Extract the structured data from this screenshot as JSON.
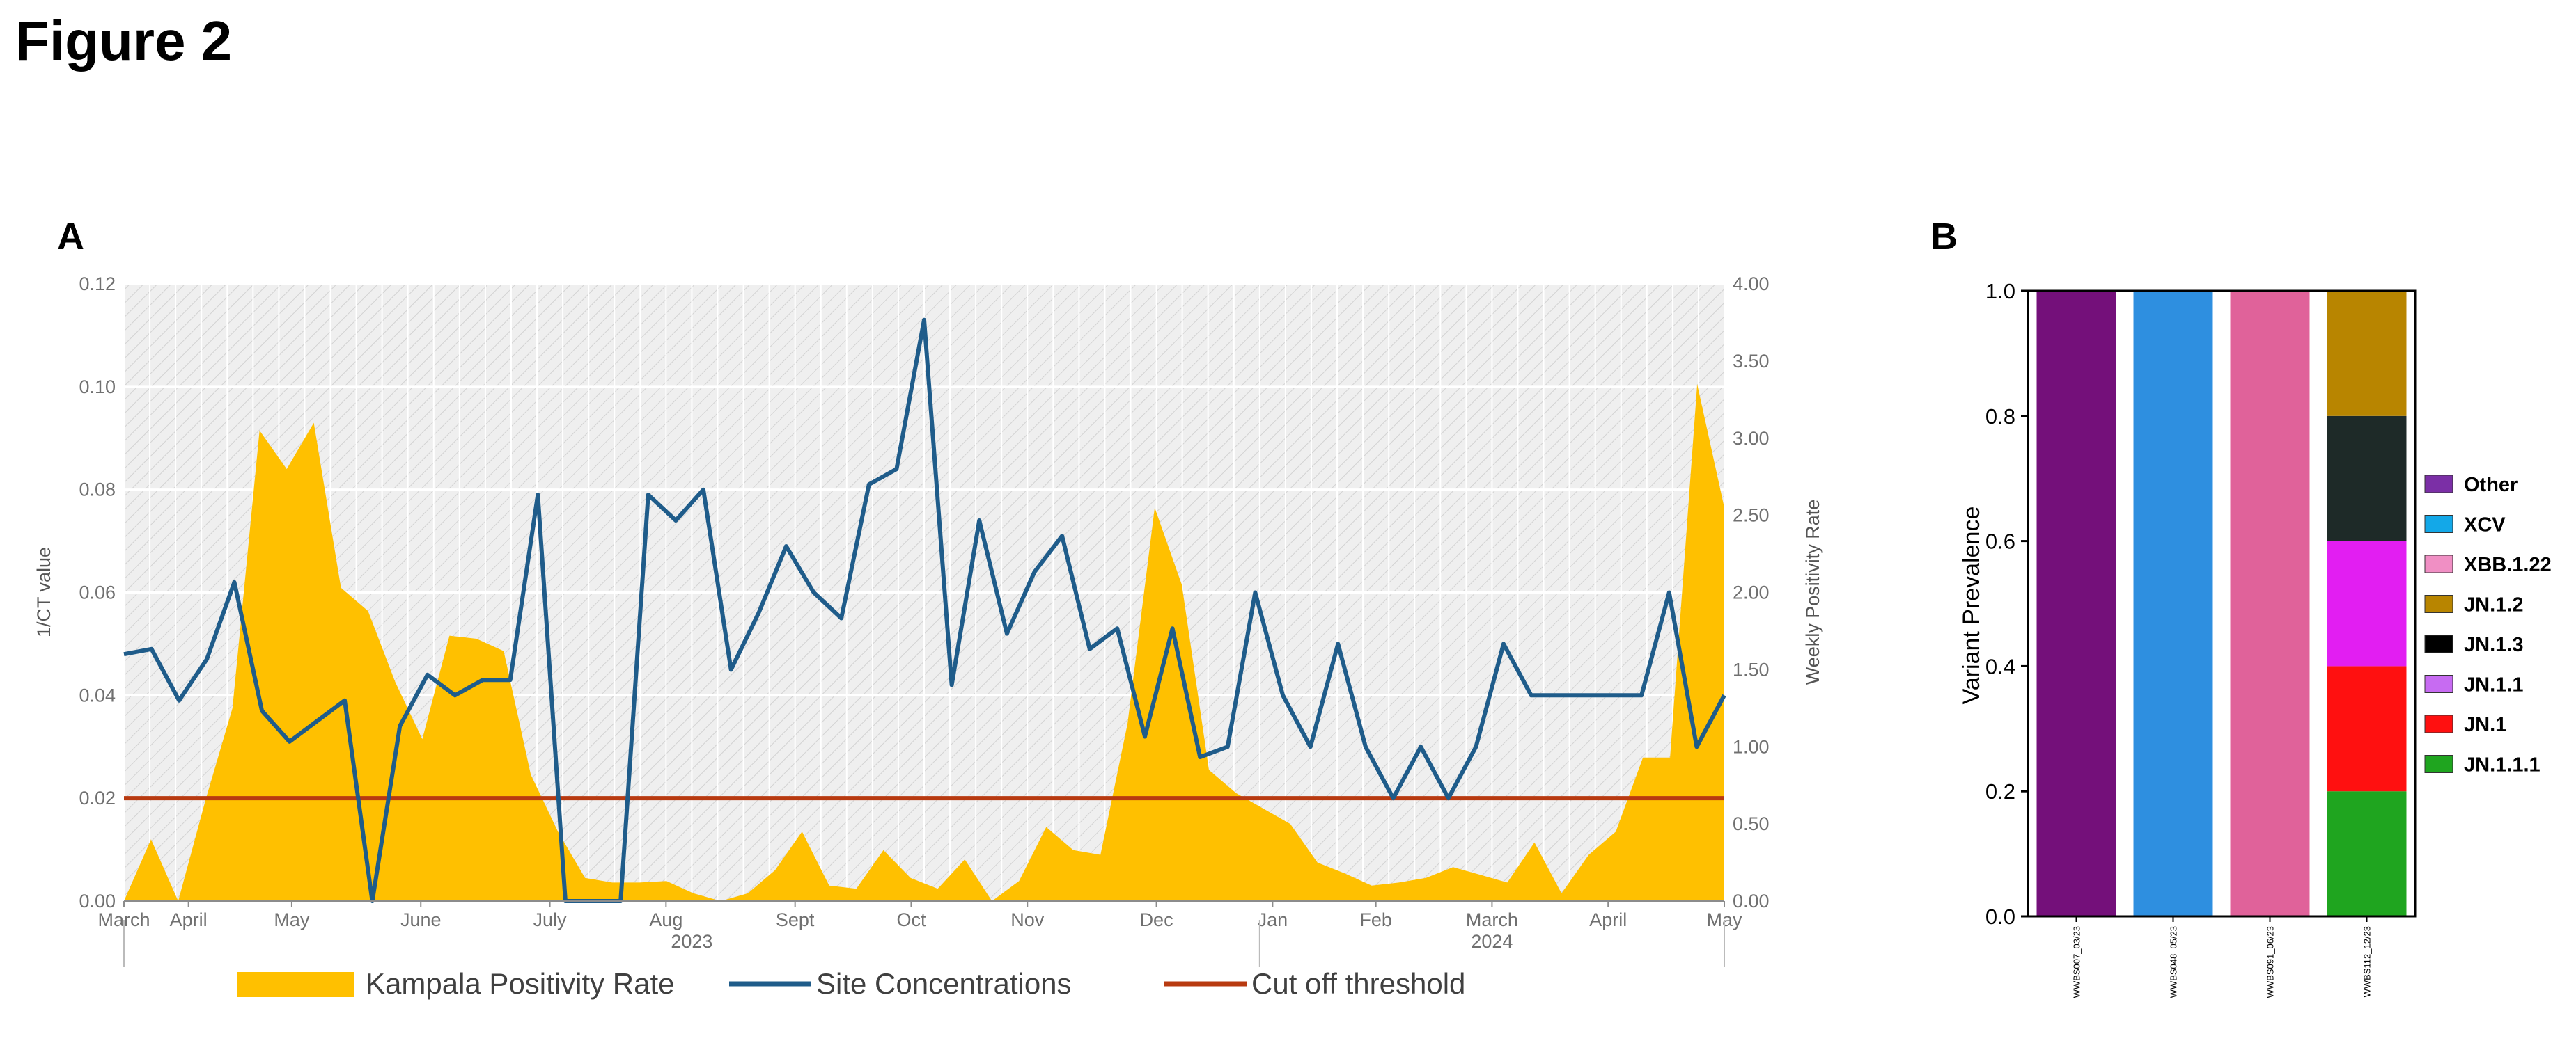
{
  "figure_title": "Figure 2",
  "colors": {
    "positivity": "#FFC000",
    "site": "#1F5C8A",
    "cutoff": "#B83A10",
    "plot_bg": "#EFEFEF",
    "grid": "#FFFFFF",
    "axis": "#8C8C8C",
    "tick_text": "#707070"
  },
  "chart_data": [
    {
      "panel": "A",
      "type": "area",
      "ylabel_left": "1/CT value",
      "ylabel_right": "Weekly Positivity Rate",
      "ylim_left": [
        0,
        0.12
      ],
      "yticks_left": [
        "0.00",
        "0.02",
        "0.04",
        "0.06",
        "0.08",
        "0.10",
        "0.12"
      ],
      "ylim_right": [
        0,
        4
      ],
      "yticks_right": [
        "0.00",
        "0.50",
        "1.00",
        "1.50",
        "2.00",
        "2.50",
        "3.00",
        "3.50",
        "4.00"
      ],
      "n_weeks": 63,
      "month_ticks": [
        {
          "label": "March",
          "week": 0
        },
        {
          "label": "April",
          "week": 2.5
        },
        {
          "label": "May",
          "week": 6.5
        },
        {
          "label": "June",
          "week": 11.5
        },
        {
          "label": "July",
          "week": 16.5
        },
        {
          "label": "Aug",
          "week": 21
        },
        {
          "label": "Sept",
          "week": 26
        },
        {
          "label": "Oct",
          "week": 30.5
        },
        {
          "label": "Nov",
          "week": 35
        },
        {
          "label": "Dec",
          "week": 40
        },
        {
          "label": "Jan",
          "week": 44.5
        },
        {
          "label": "Feb",
          "week": 48.5
        },
        {
          "label": "March",
          "week": 53
        },
        {
          "label": "April",
          "week": 57.5
        },
        {
          "label": "May",
          "week": 62
        }
      ],
      "years": [
        {
          "label": "2023",
          "from_week": 0,
          "to_week": 44
        },
        {
          "label": "2024",
          "from_week": 44,
          "to_week": 63
        }
      ],
      "series": [
        {
          "name": "Kampala Positivity Rate",
          "kind": "area",
          "axis": "right",
          "values": [
            0.0,
            0.4,
            0.0,
            0.65,
            1.25,
            3.05,
            2.8,
            3.1,
            2.03,
            1.88,
            1.42,
            1.05,
            1.72,
            1.7,
            1.62,
            0.82,
            0.45,
            0.15,
            0.12,
            0.12,
            0.13,
            0.05,
            0.0,
            0.05,
            0.2,
            0.45,
            0.1,
            0.08,
            0.33,
            0.15,
            0.08,
            0.27,
            0.0,
            0.13,
            0.48,
            0.33,
            0.3,
            1.15,
            2.55,
            2.05,
            0.85,
            0.7,
            0.6,
            0.5,
            0.25,
            0.18,
            0.1,
            0.12,
            0.15,
            0.22,
            0.17,
            0.12,
            0.38,
            0.05,
            0.3,
            0.45,
            0.93,
            0.93,
            3.35,
            2.55
          ]
        },
        {
          "name": "Site Concentrations",
          "kind": "line",
          "axis": "left",
          "values": [
            0.048,
            0.049,
            0.039,
            0.047,
            0.062,
            0.037,
            0.031,
            0.035,
            0.039,
            0.0,
            0.034,
            0.044,
            0.04,
            0.043,
            0.043,
            0.079,
            0.0,
            0.0,
            0.0,
            0.079,
            0.074,
            0.08,
            0.045,
            0.056,
            0.069,
            0.06,
            0.055,
            0.081,
            0.084,
            0.113,
            0.042,
            0.074,
            0.052,
            0.064,
            0.071,
            0.049,
            0.053,
            0.032,
            0.053,
            0.028,
            0.03,
            0.06,
            0.04,
            0.03,
            0.05,
            0.03,
            0.02,
            0.03,
            0.02,
            0.03,
            0.05,
            0.04,
            0.04,
            0.04,
            0.04,
            0.04,
            0.06,
            0.03,
            0.04
          ]
        },
        {
          "name": "Cut off threshold",
          "kind": "line",
          "axis": "left",
          "values": [
            0.02,
            0.02
          ]
        }
      ]
    },
    {
      "panel": "B",
      "type": "bar",
      "stacked": true,
      "ylabel": "Variant Prevalence",
      "ylim": [
        0,
        1
      ],
      "yticks": [
        "0.0",
        "0.2",
        "0.4",
        "0.6",
        "0.8",
        "1.0"
      ],
      "categories": [
        "WWBS007_03/23",
        "WWBS048_05/23",
        "WWBS091_06/23",
        "WWBS112_12/23"
      ],
      "series": [
        {
          "name": "Other",
          "color": "#74107A",
          "values": [
            1,
            0,
            0,
            0
          ]
        },
        {
          "name": "XCV",
          "color": "#2E8FE0",
          "values": [
            0,
            1,
            0,
            0
          ]
        },
        {
          "name": "XBB.1.22",
          "color": "#E0629A",
          "values": [
            0,
            0,
            1,
            0
          ]
        },
        {
          "name": "JN.1.2",
          "color": "#B88500",
          "values": [
            0,
            0,
            0,
            0.2
          ]
        },
        {
          "name": "JN.1.3",
          "color": "#1E2A28",
          "values": [
            0,
            0,
            0,
            0.2
          ]
        },
        {
          "name": "JN.1.1",
          "color": "#E21EF2",
          "values": [
            0,
            0,
            0,
            0.2
          ]
        },
        {
          "name": "JN.1",
          "color": "#FF1010",
          "values": [
            0,
            0,
            0,
            0.2
          ]
        },
        {
          "name": "JN.1.1.1",
          "color": "#1FA51F",
          "values": [
            0,
            0,
            0,
            0.2
          ]
        }
      ],
      "legend_colors": [
        "#7B2FA6",
        "#13A8E8",
        "#F08FC4",
        "#B88500",
        "#000000",
        "#C76BF2",
        "#FF1010",
        "#1FA51F"
      ]
    }
  ]
}
